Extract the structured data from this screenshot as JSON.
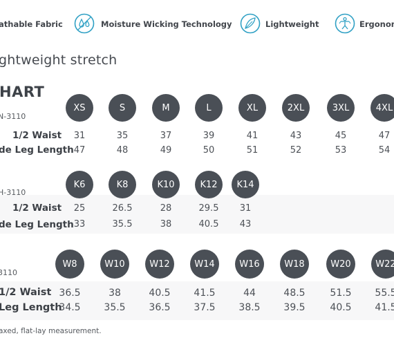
{
  "features": [
    {
      "label": "athable Fabric",
      "icon": "fabric-icon"
    },
    {
      "label": "Moisture Wicking Technology",
      "icon": "water-drops-icon"
    },
    {
      "label": "Lightweight",
      "icon": "feather-icon"
    },
    {
      "label": "Ergonom",
      "icon": "ergonomic-icon"
    }
  ],
  "subtitle": "ghtweight stretch",
  "chart_title": "HART",
  "footnote": "axed, flat-lay measurement.",
  "row_labels": {
    "waist": "1/2 Waist",
    "leg_full": "de Leg Length",
    "leg_short": "Leg Length"
  },
  "sections": [
    {
      "code": "N-3110",
      "sizes": [
        "XS",
        "S",
        "M",
        "L",
        "XL",
        "2XL",
        "3XL",
        "4XL"
      ],
      "waist": [
        "31",
        "35",
        "37",
        "39",
        "41",
        "43",
        "45",
        "47"
      ],
      "leg": [
        "47",
        "48",
        "49",
        "50",
        "51",
        "52",
        "53",
        "54"
      ]
    },
    {
      "code": "H-3110",
      "sizes": [
        "K6",
        "K8",
        "K10",
        "K12",
        "K14"
      ],
      "waist": [
        "25",
        "26.5",
        "28",
        "29.5",
        "31"
      ],
      "leg": [
        "33",
        "35.5",
        "38",
        "40.5",
        "43"
      ]
    },
    {
      "code": "3110",
      "sizes": [
        "W8",
        "W10",
        "W12",
        "W14",
        "W16",
        "W18",
        "W20",
        "W22"
      ],
      "waist": [
        "36.5",
        "38",
        "40.5",
        "41.5",
        "44",
        "48.5",
        "51.5",
        "55.5"
      ],
      "leg": [
        "34.5",
        "35.5",
        "36.5",
        "37.5",
        "38.5",
        "39.5",
        "40.5",
        "41.5"
      ]
    }
  ],
  "colors": {
    "circle": "#4a4f56",
    "icon": "#2fa0c4",
    "text": "#3c4046"
  }
}
